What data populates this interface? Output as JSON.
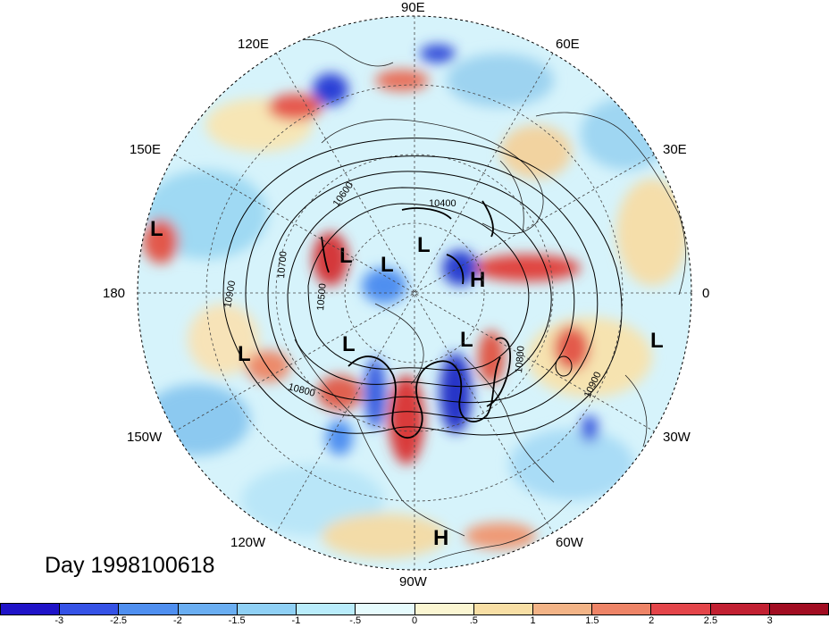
{
  "title": "Day 1998100618",
  "longitude_labels": [
    {
      "id": "90e",
      "text": "90E"
    },
    {
      "id": "60e",
      "text": "60E"
    },
    {
      "id": "30e",
      "text": "30E"
    },
    {
      "id": "0",
      "text": "0"
    },
    {
      "id": "30w",
      "text": "30W"
    },
    {
      "id": "60w",
      "text": "60W"
    },
    {
      "id": "90w",
      "text": "90W"
    },
    {
      "id": "120w",
      "text": "120W"
    },
    {
      "id": "150w",
      "text": "150W"
    },
    {
      "id": "180",
      "text": "180"
    },
    {
      "id": "150e",
      "text": "150E"
    },
    {
      "id": "120e",
      "text": "120E"
    }
  ],
  "contour_labels": [
    "10400",
    "10500",
    "10600",
    "10700",
    "10800",
    "10900",
    "10800",
    "10900"
  ],
  "pressure_centers": {
    "low": "L",
    "high": "H"
  },
  "colorbar": {
    "ticks": [
      "-3",
      "-2.5",
      "-2",
      "-1.5",
      "-1",
      "-.5",
      "0",
      ".5",
      "1",
      "1.5",
      "2",
      "2.5",
      "3"
    ],
    "colors": [
      "#1f13c8",
      "#3552e6",
      "#4f8ff0",
      "#6aaef2",
      "#8fd0f5",
      "#b9ecfb",
      "#e6fbfd",
      "#fbf6d2",
      "#f8dfa5",
      "#f3b487",
      "#ee8467",
      "#e4454a",
      "#c22032",
      "#a20d22"
    ]
  }
}
